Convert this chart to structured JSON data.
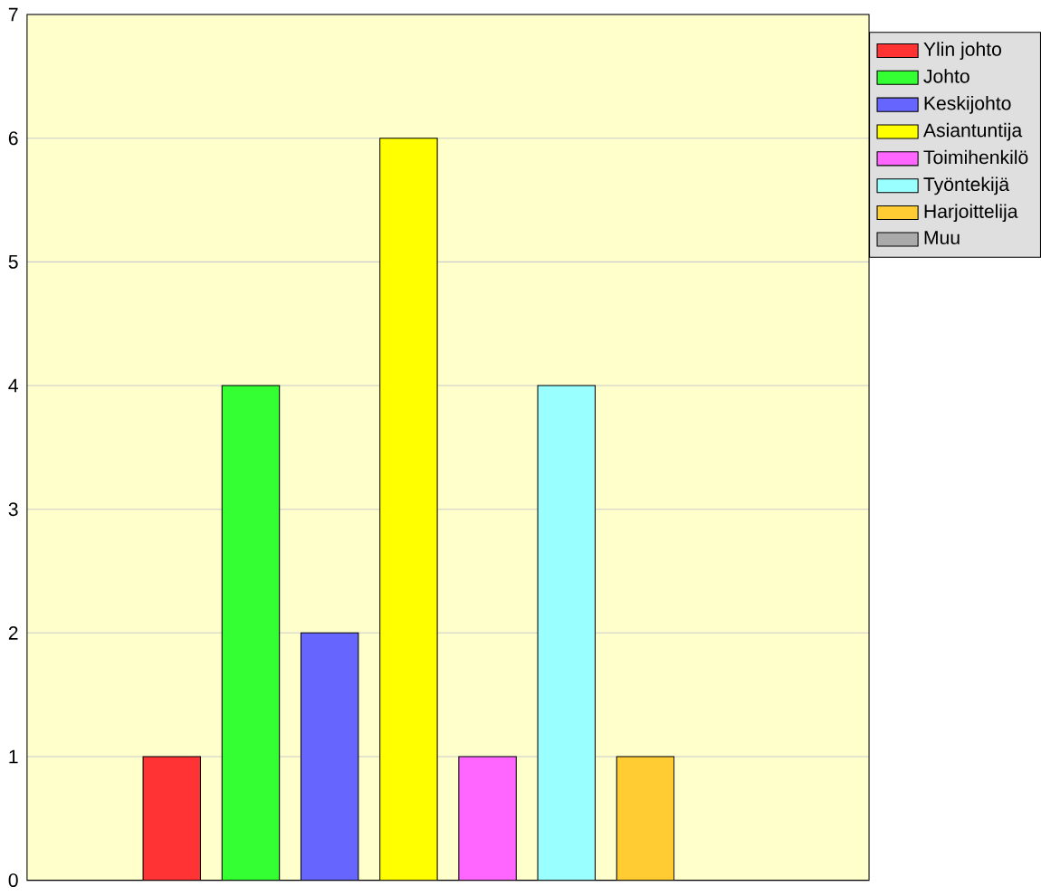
{
  "chart_data": {
    "type": "bar",
    "categories": [
      null
    ],
    "series": [
      {
        "name": "Ylin johto",
        "color": "#ff3333",
        "values": [
          1
        ]
      },
      {
        "name": "Johto",
        "color": "#33ff33",
        "values": [
          4
        ]
      },
      {
        "name": "Keskijohto",
        "color": "#6666ff",
        "values": [
          2
        ]
      },
      {
        "name": "Asiantuntija",
        "color": "#ffff00",
        "values": [
          6
        ]
      },
      {
        "name": "Toimihenkilö",
        "color": "#ff66ff",
        "values": [
          1
        ]
      },
      {
        "name": "Työntekijä",
        "color": "#99ffff",
        "values": [
          4
        ]
      },
      {
        "name": "Harjoittelija",
        "color": "#ffcc33",
        "values": [
          1
        ]
      },
      {
        "name": "Muu",
        "color": "#aaaaaa",
        "values": [
          0
        ]
      }
    ],
    "ylim": [
      0,
      7
    ],
    "yticks": [
      0,
      1,
      2,
      3,
      4,
      5,
      6,
      7
    ],
    "grid": "y",
    "legend": "top right",
    "tick_labels": "y"
  }
}
